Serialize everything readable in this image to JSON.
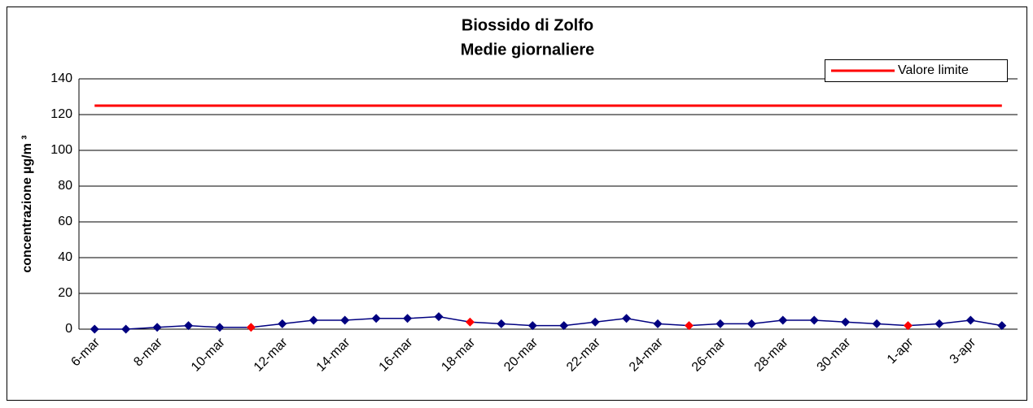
{
  "chart_data": {
    "type": "line",
    "title": "Biossido di Zolfo",
    "subtitle": "Medie giornaliere",
    "y_label": "concentrazione µg/m ³",
    "categories": [
      "6-mar",
      null,
      "8-mar",
      null,
      "10-mar",
      null,
      "12-mar",
      null,
      "14-mar",
      null,
      "16-mar",
      null,
      "18-mar",
      null,
      "20-mar",
      null,
      "22-mar",
      null,
      "24-mar",
      null,
      "26-mar",
      null,
      "28-mar",
      null,
      "30-mar",
      null,
      "1-apr",
      null,
      "3-apr",
      null
    ],
    "series": [
      {
        "name": "Valore limite",
        "color": "#ff0000",
        "values": [
          125,
          125,
          125,
          125,
          125,
          125,
          125,
          125,
          125,
          125,
          125,
          125,
          125,
          125,
          125,
          125,
          125,
          125,
          125,
          125,
          125,
          125,
          125,
          125,
          125,
          125,
          125,
          125,
          125,
          125
        ]
      },
      {
        "color": "#000080",
        "values": [
          0,
          0,
          1,
          2,
          1,
          1,
          3,
          5,
          5,
          6,
          6,
          7,
          4,
          3,
          2,
          2,
          4,
          6,
          3,
          2,
          3,
          3,
          5,
          5,
          4,
          3,
          2,
          3,
          5,
          2
        ],
        "marker_colors": [
          "#000080",
          "#000080",
          "#000080",
          "#000080",
          "#000080",
          "#ff0000",
          "#000080",
          "#000080",
          "#000080",
          "#000080",
          "#000080",
          "#000080",
          "#ff0000",
          "#000080",
          "#000080",
          "#000080",
          "#000080",
          "#000080",
          "#000080",
          "#ff0000",
          "#000080",
          "#000080",
          "#000080",
          "#000080",
          "#000080",
          "#000080",
          "#ff0000",
          "#000080",
          "#000080",
          "#000080"
        ]
      }
    ],
    "ylim": [
      0,
      140
    ],
    "yticks": [
      0,
      20,
      40,
      60,
      80,
      100,
      120,
      140
    ],
    "grid": true,
    "legend": "top-right"
  }
}
